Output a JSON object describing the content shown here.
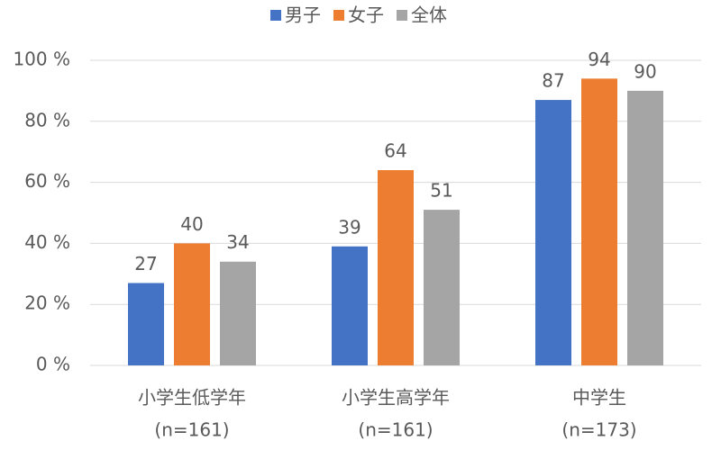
{
  "chart_data": {
    "type": "bar",
    "categories": [
      [
        "小学生低学年",
        "(n=161)"
      ],
      [
        "小学生高学年",
        "(n=161)"
      ],
      [
        "中学生",
        "(n=173)"
      ]
    ],
    "series": [
      {
        "name": "男子",
        "color": "#4472c4",
        "values": [
          27,
          39,
          87
        ]
      },
      {
        "name": "女子",
        "color": "#ed7d31",
        "values": [
          40,
          64,
          94
        ]
      },
      {
        "name": "全体",
        "color": "#a5a5a5",
        "values": [
          34,
          51,
          90
        ]
      }
    ],
    "ylim": [
      0,
      100
    ],
    "yticks": [
      {
        "value": 0,
        "label": "0 %"
      },
      {
        "value": 20,
        "label": "20 %"
      },
      {
        "value": 40,
        "label": "40 %"
      },
      {
        "value": 60,
        "label": "60 %"
      },
      {
        "value": 80,
        "label": "80 %"
      },
      {
        "value": 100,
        "label": "100 %"
      }
    ],
    "grid": true,
    "legend": "top"
  }
}
